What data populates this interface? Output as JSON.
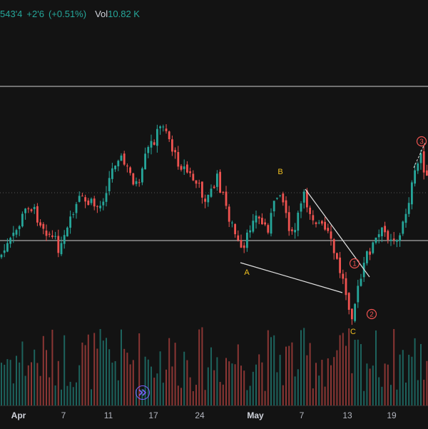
{
  "legend": {
    "price": "543'4",
    "change": "+2'6",
    "change_pct": "(+0.51%)",
    "vol_label": "Vol",
    "vol_value": "10.82 K"
  },
  "time_axis": {
    "ticks": [
      {
        "label": "Apr",
        "month": true
      },
      {
        "label": "7",
        "month": false
      },
      {
        "label": "11",
        "month": false
      },
      {
        "label": "17",
        "month": false
      },
      {
        "label": "24",
        "month": false
      },
      {
        "label": "May",
        "month": true
      },
      {
        "label": "7",
        "month": false
      },
      {
        "label": "13",
        "month": false
      },
      {
        "label": "19",
        "month": false
      }
    ]
  },
  "annotations": {
    "wave_labels": [
      "A",
      "B",
      "C"
    ],
    "impulse_labels": [
      "1",
      "2",
      "3"
    ]
  },
  "colors": {
    "background": "#131313",
    "up": "#26a69a",
    "down": "#ef5350",
    "wave_label": "#f0c020",
    "impulse_label": "#ef5350",
    "trendline": "#e0e0e0",
    "replay": "#7b61ff"
  },
  "icons": {
    "replay": "fast-forward-circle-icon"
  }
}
